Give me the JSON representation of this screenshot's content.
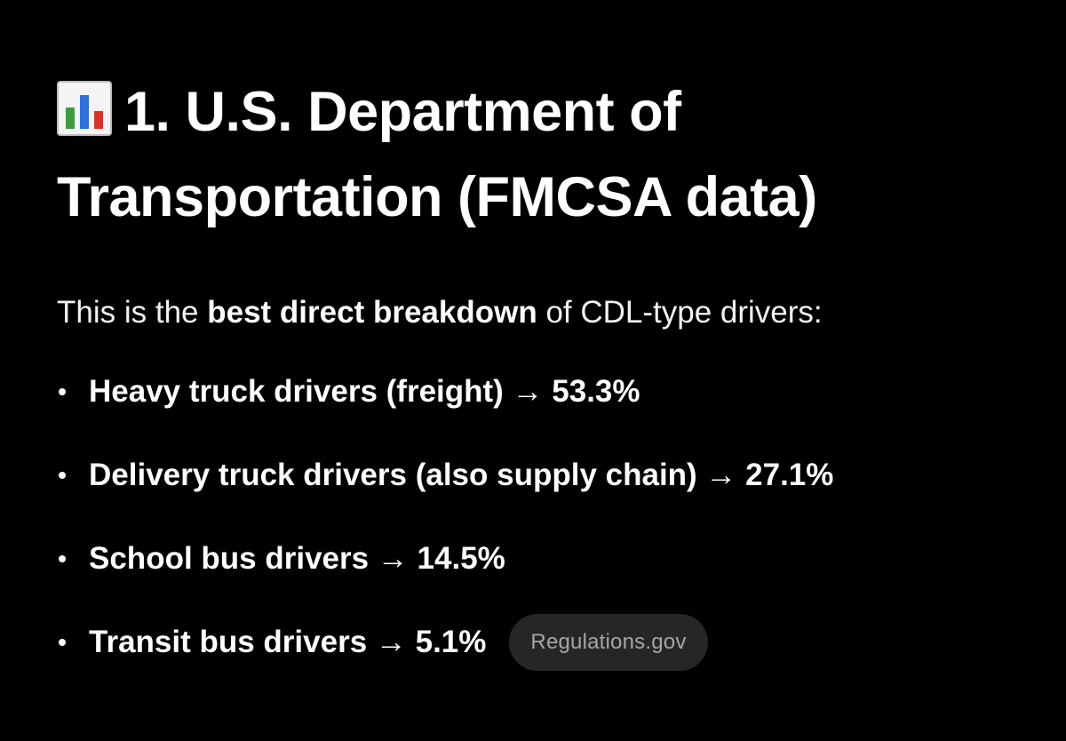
{
  "heading": {
    "icon": "bar-chart-icon",
    "text": "1. U.S. Department of Transportation (FMCSA data)"
  },
  "intro": {
    "before": "This is the ",
    "bold": "best direct breakdown",
    "after": " of CDL-type drivers:"
  },
  "items": [
    {
      "label": "Heavy truck drivers (freight) → 53.3%"
    },
    {
      "label": "Delivery truck drivers (also supply chain) → 27.1%"
    },
    {
      "label": "School bus drivers → 14.5%"
    },
    {
      "label": "Transit bus drivers → 5.1%"
    }
  ],
  "source_chip": "Regulations.gov",
  "colors": {
    "background": "#000000",
    "text": "#ffffff",
    "chip_bg": "#262626",
    "chip_text": "#a6a6a6"
  }
}
